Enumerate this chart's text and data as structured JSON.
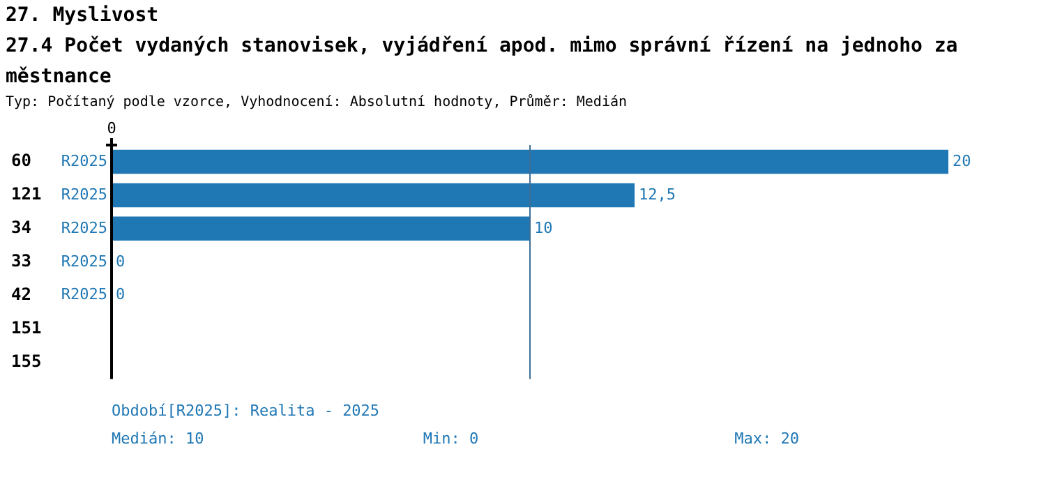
{
  "chart_data": {
    "type": "bar",
    "orientation": "horizontal",
    "title": "27. Myslivost\n27.4 Počet vydaných stanovisek, vyjádření apod. mimo správní řízení na jednoho zaměstnance",
    "subtitle": "Typ: Počítaný podle vzorce, Vyhodnocení: Absolutní hodnoty, Průměr: Medián",
    "categories": [
      "60",
      "121",
      "34",
      "33",
      "42",
      "151",
      "155"
    ],
    "series": [
      {
        "name": "R2025",
        "color": "#1f77b4",
        "values": [
          20,
          12.5,
          10,
          0,
          0,
          null,
          null
        ],
        "value_labels": [
          "20",
          "12,5",
          "10",
          "0",
          "0",
          null,
          null
        ]
      }
    ],
    "xlim": [
      0,
      20
    ],
    "grid": false,
    "legend": false,
    "ref_lines": [
      {
        "axis": "x",
        "value": 10,
        "color": "#3d6f96"
      }
    ],
    "annotations": [
      "0",
      "Období[R2025]: Realita - 2025",
      "Medián: 10",
      "Min: 0",
      "Max: 20"
    ]
  }
}
